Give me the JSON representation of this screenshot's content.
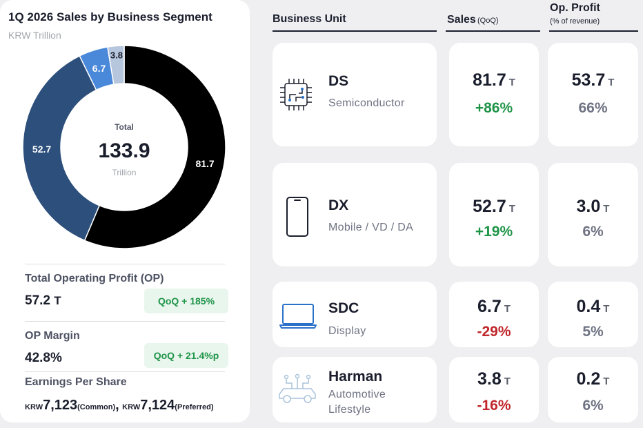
{
  "chart_data": {
    "type": "pie",
    "title": "1Q 2026 Sales by Business Segment",
    "subtitle": "KRW Trillion",
    "center": {
      "label": "Total",
      "value": "133.9",
      "unit": "Trillion"
    },
    "categories": [
      "DS",
      "DX",
      "SDC",
      "Harman"
    ],
    "values": [
      81.7,
      52.7,
      6.7,
      3.8
    ],
    "colors": [
      "#000000",
      "#2c4f7c",
      "#4a88d9",
      "#b6c6dd"
    ],
    "data_labels": [
      "81.7",
      "52.7",
      "6.7",
      "3.8"
    ]
  },
  "summary": {
    "op_label": "Total Operating Profit (OP)",
    "op_value": "57.2",
    "op_unit": "T",
    "op_badge": "QoQ  + 185%",
    "margin_label": "OP Margin",
    "margin_value": "42.8%",
    "margin_badge": "QoQ  + 21.4%p",
    "eps_label": "Earnings Per Share",
    "eps_common_currency": "KRW",
    "eps_common_value": "7,123",
    "eps_common_kind": "(Common)",
    "eps_separator": ",",
    "eps_pref_currency": "KRW",
    "eps_pref_value": "7,124",
    "eps_pref_kind": "(Preferred)"
  },
  "table": {
    "headers": {
      "unit": "Business Unit",
      "sales": "Sales",
      "sales_note": "(QoQ)",
      "profit": "Op. Profit",
      "profit_note": "(% of revenue)"
    },
    "value_suffix": "T",
    "rows": [
      {
        "name": "DS",
        "desc": "Semiconductor",
        "icon": "chip-icon",
        "sales": "81.7",
        "sales_change": "+86%",
        "profit": "53.7",
        "margin": "66%"
      },
      {
        "name": "DX",
        "desc": "Mobile / VD / DA",
        "icon": "smartphone-icon",
        "sales": "52.7",
        "sales_change": "+19%",
        "profit": "3.0",
        "margin": "6%"
      },
      {
        "name": "SDC",
        "desc": "Display",
        "icon": "laptop-icon",
        "sales": "6.7",
        "sales_change": "-29%",
        "profit": "0.4",
        "margin": "5%"
      },
      {
        "name": "Harman",
        "desc_line1": "Automotive",
        "desc_line2": "Lifestyle",
        "icon": "connected-car-icon",
        "sales": "3.8",
        "sales_change": "-16%",
        "profit": "0.2",
        "margin": "6%"
      }
    ]
  },
  "colors": {
    "positive": "#1e9447",
    "negative": "#c0262b",
    "badge_bg": "#e9f6ee",
    "icon_blue": "#2a72c8",
    "icon_light": "#a9c3dc"
  }
}
